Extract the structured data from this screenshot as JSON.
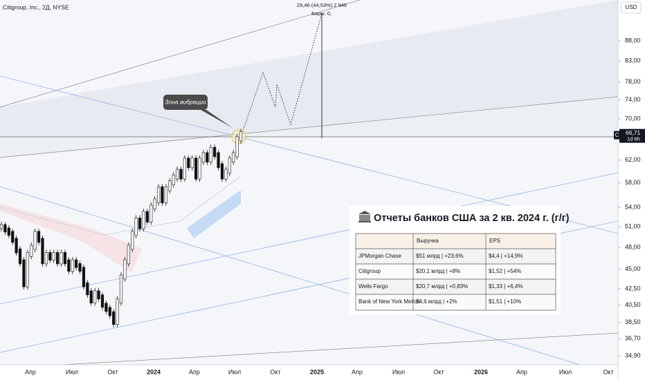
{
  "header": {
    "symbol": "Citigroup, Inc., 2Д, NYSE",
    "currency": "USD"
  },
  "chart_data": {
    "type": "candles",
    "log_scale": true,
    "ylim": [
      34.0,
      99.2
    ],
    "yticks": [
      {
        "value": 34.9,
        "label": "34,90"
      },
      {
        "value": 36.7,
        "label": "36,70"
      },
      {
        "value": 38.5,
        "label": "38,50"
      },
      {
        "value": 40.5,
        "label": "40,50"
      },
      {
        "value": 42.5,
        "label": "42,50"
      },
      {
        "value": 45,
        "label": "45,00"
      },
      {
        "value": 48,
        "label": "48,00"
      },
      {
        "value": 51,
        "label": "51,00"
      },
      {
        "value": 54,
        "label": "54,00"
      },
      {
        "value": 58,
        "label": "58,00"
      },
      {
        "value": 62,
        "label": "62,00"
      },
      {
        "value": 70,
        "label": "70,00"
      },
      {
        "value": 74,
        "label": "74,00"
      },
      {
        "value": 78,
        "label": "78,00"
      },
      {
        "value": 83,
        "label": "83,00"
      },
      {
        "value": 88,
        "label": "88,00"
      }
    ],
    "categories": [
      "Апр",
      "Июл",
      "Окт",
      "2024",
      "Апр",
      "Июл",
      "Окт",
      "2025",
      "Апр",
      "Июл",
      "Окт",
      "2026",
      "Апр",
      "Июл",
      "Окт"
    ],
    "closes": [
      51,
      50.5,
      50,
      49,
      47.5,
      46,
      43,
      47,
      48,
      50,
      49,
      46,
      47,
      46.5,
      47,
      46,
      47,
      46,
      45,
      46,
      45.5,
      45,
      43,
      42,
      41,
      42,
      41.5,
      40.5,
      40,
      39.5,
      38.5,
      41,
      44,
      46,
      48,
      50,
      52,
      51,
      53,
      52,
      54,
      55,
      57,
      55,
      57,
      58,
      59,
      60,
      59,
      62,
      61,
      62,
      59,
      62,
      63,
      62,
      64,
      63,
      61,
      59,
      60,
      62,
      63,
      66,
      67
    ],
    "current_price": {
      "value": 66.71,
      "label": "66,71",
      "countdown": "1d 6h",
      "tag": "C"
    }
  },
  "annotations": {
    "callout": "Зона вибрации",
    "measure": "29,46 (44,53%) 2 946",
    "bars": "Бары: 0,"
  },
  "table": {
    "title": "Отчеты банков США за 2 кв. 2024 г. (г/г)",
    "columns": [
      "Выручка",
      "EPS"
    ],
    "rows": [
      [
        "JPMorgan Chase",
        "$51 млрд | +23,6%",
        "$4,4 | +14,9%"
      ],
      [
        "Citigroup",
        "$20,1 млрд | +8%",
        "$1,52 | +54%"
      ],
      [
        "Wells Fargo",
        "$20,7 млрд | +0,83%",
        "$1,33 | +6,4%"
      ],
      [
        "Bank of New York Mellon",
        "$4,6 млрд | +2%",
        "$1,51 | +10%"
      ]
    ]
  }
}
